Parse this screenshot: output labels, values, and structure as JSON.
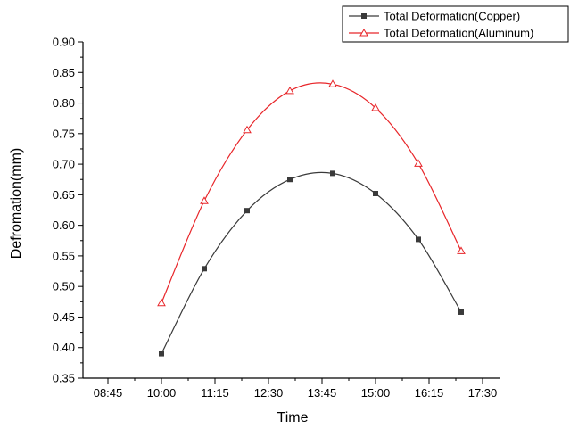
{
  "chart_data": {
    "type": "line",
    "xlabel": "Time",
    "ylabel": "Defromation(mm)",
    "x_ticks": [
      "08:45",
      "10:00",
      "11:15",
      "12:30",
      "13:45",
      "15:00",
      "16:15",
      "17:30"
    ],
    "xlim": [
      "08:10",
      "17:55"
    ],
    "ylim": [
      0.35,
      0.9
    ],
    "y_ticks": [
      "0.35",
      "0.40",
      "0.45",
      "0.50",
      "0.55",
      "0.60",
      "0.65",
      "0.70",
      "0.75",
      "0.80",
      "0.85",
      "0.90"
    ],
    "grid": false,
    "legend_position": "top-right",
    "series": [
      {
        "name": "Total Deformation(Copper)",
        "color": "#3a3a3a",
        "marker": "square",
        "x": [
          "10:00",
          "11:00",
          "12:00",
          "13:00",
          "14:00",
          "15:00",
          "16:00",
          "17:00"
        ],
        "values": [
          0.39,
          0.529,
          0.624,
          0.675,
          0.685,
          0.652,
          0.577,
          0.458
        ]
      },
      {
        "name": "Total Deformation(Aluminum)",
        "color": "#e8262a",
        "marker": "triangle-open",
        "x": [
          "10:00",
          "11:00",
          "12:00",
          "13:00",
          "14:00",
          "15:00",
          "16:00",
          "17:00"
        ],
        "values": [
          0.473,
          0.64,
          0.756,
          0.82,
          0.831,
          0.792,
          0.701,
          0.558
        ]
      }
    ]
  }
}
